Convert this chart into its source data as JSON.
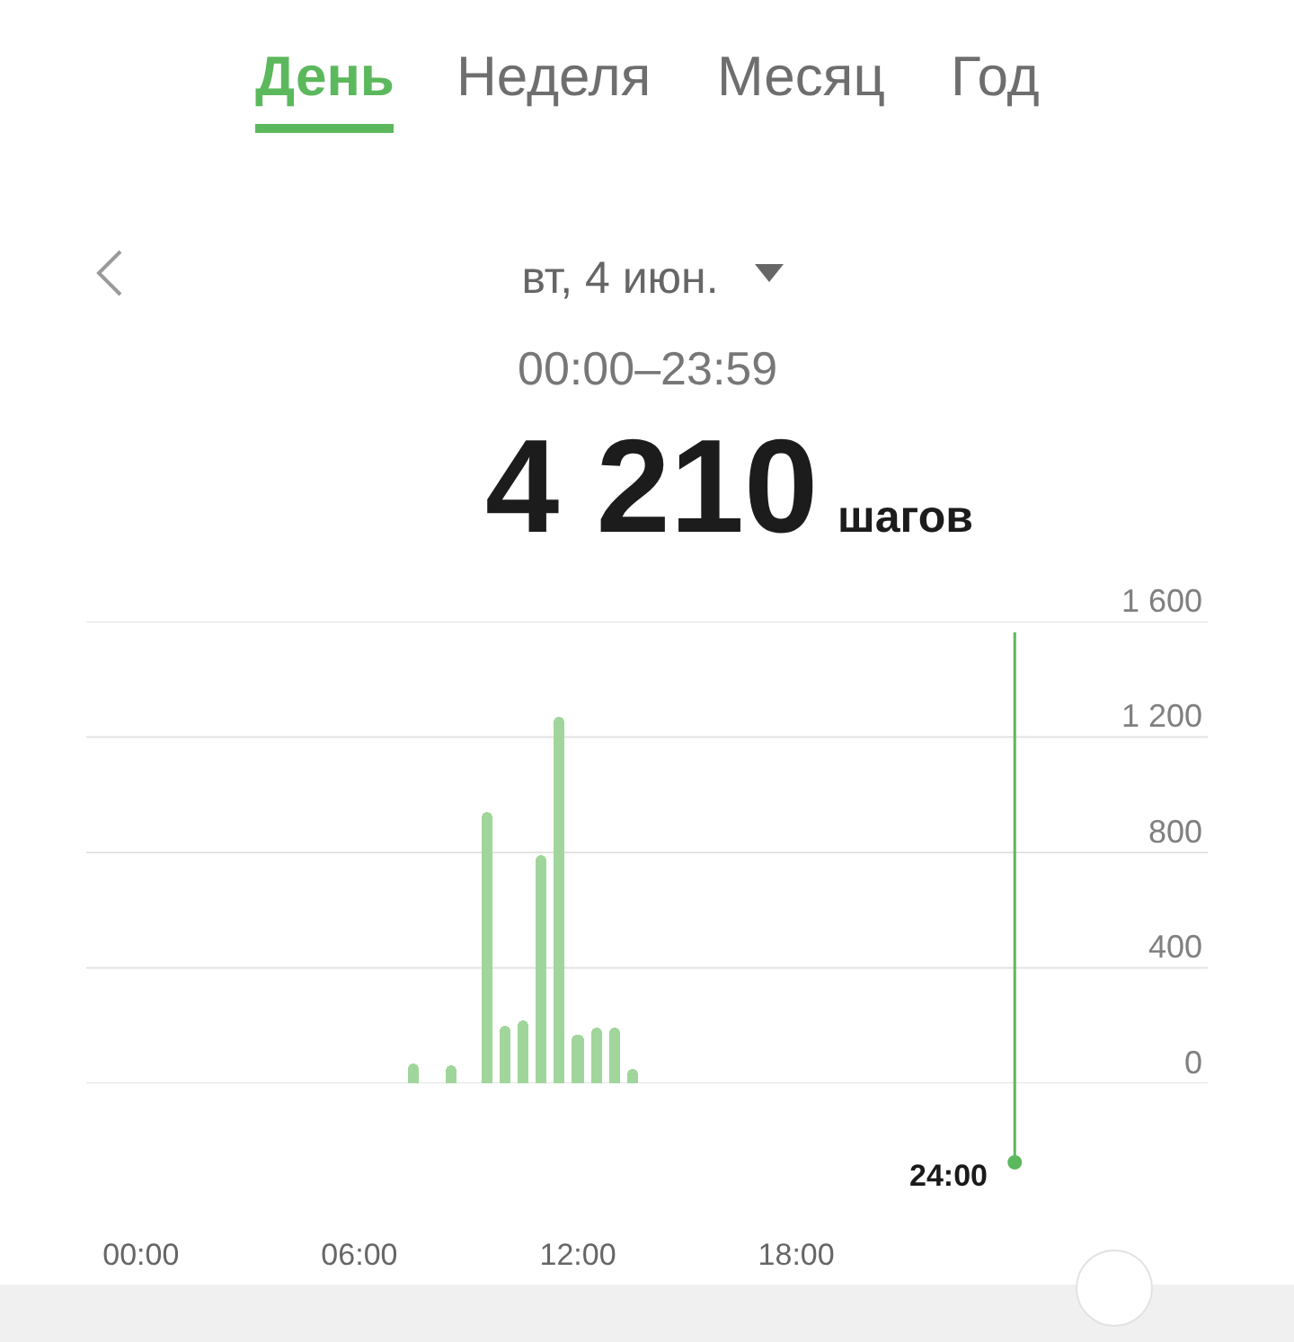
{
  "chart_data": {
    "type": "bar",
    "title": "вт, 4 июн.",
    "subtitle": "00:00–23:59",
    "annotations": [
      "День",
      "Неделя",
      "Месяц",
      "Год",
      "4 210",
      "шагов"
    ],
    "x": [
      7.5,
      8.5,
      9.5,
      10,
      10.5,
      11,
      11.5,
      12,
      12.5,
      13,
      13.5
    ],
    "values": [
      70,
      60,
      940,
      200,
      220,
      790,
      1270,
      170,
      190,
      190,
      50
    ],
    "color": "#a0d69b",
    "xlim": [
      -1.5,
      29.3
    ],
    "xticks": [
      {
        "value": 0,
        "label": "00:00"
      },
      {
        "value": 6,
        "label": "06:00"
      },
      {
        "value": 12,
        "label": "12:00"
      },
      {
        "value": 18,
        "label": "18:00"
      }
    ],
    "ylim": [
      0,
      1600
    ],
    "yticks": [
      0,
      400,
      800,
      {
        "value": 1200,
        "label": "1 200"
      },
      {
        "value": 1600,
        "label": "1 600"
      }
    ],
    "grid": "y",
    "ref_lines": [
      {
        "axis": "x",
        "value": 24,
        "label": "24:00",
        "color": "#5cb85c"
      }
    ]
  }
}
